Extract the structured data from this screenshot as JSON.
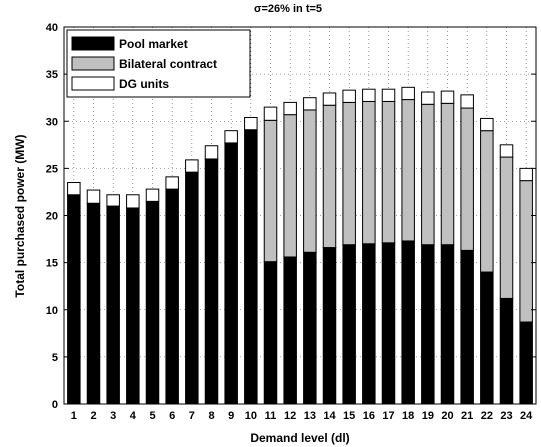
{
  "chart_data": {
    "type": "bar",
    "stacked": true,
    "title": "σ=26% in t=5",
    "xlabel": "Demand level (dl)",
    "ylabel": "Total purchased power (MW)",
    "ylim": [
      0,
      40
    ],
    "yticks": [
      "0",
      "5",
      "10",
      "15",
      "20",
      "25",
      "30",
      "35",
      "40"
    ],
    "categories": [
      "1",
      "2",
      "3",
      "4",
      "5",
      "6",
      "7",
      "8",
      "9",
      "10",
      "11",
      "12",
      "13",
      "14",
      "15",
      "16",
      "17",
      "18",
      "19",
      "20",
      "21",
      "22",
      "23",
      "24"
    ],
    "series": [
      {
        "name": "Pool market",
        "color": "#000000",
        "values": [
          22.2,
          21.3,
          21.0,
          20.8,
          21.5,
          22.8,
          24.6,
          26.0,
          27.7,
          29.1,
          15.1,
          15.6,
          16.1,
          16.6,
          16.9,
          17.0,
          17.1,
          17.3,
          16.9,
          16.9,
          16.3,
          14.0,
          11.2,
          8.7
        ]
      },
      {
        "name": "Bilateral contract",
        "color": "#c0c0c0",
        "values": [
          0,
          0,
          0,
          0,
          0,
          0,
          0,
          0,
          0,
          0,
          15.0,
          15.1,
          15.1,
          15.1,
          15.1,
          15.1,
          15.0,
          15.0,
          14.9,
          15.0,
          15.1,
          15.0,
          15.0,
          15.0
        ]
      },
      {
        "name": "DG units",
        "color": "#ffffff",
        "values": [
          1.3,
          1.4,
          1.2,
          1.4,
          1.3,
          1.3,
          1.3,
          1.4,
          1.3,
          1.3,
          1.4,
          1.3,
          1.3,
          1.3,
          1.3,
          1.3,
          1.3,
          1.3,
          1.3,
          1.3,
          1.4,
          1.3,
          1.3,
          1.3
        ]
      }
    ],
    "grid": "dotted",
    "legend_position": "top-left"
  }
}
